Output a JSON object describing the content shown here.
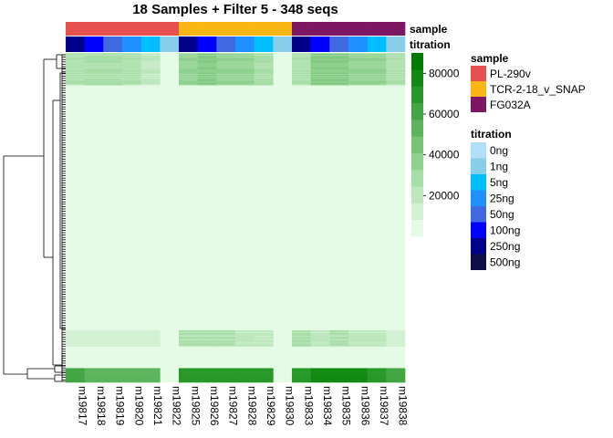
{
  "chart_data": {
    "type": "heatmap",
    "title": "18 Samples + Filter 5 - 348 seqs",
    "columns": [
      "m19817",
      "m19818",
      "m19819",
      "m19820",
      "m19821",
      "m19822",
      "m19825",
      "m19826",
      "m19827",
      "m19828",
      "m19829",
      "m19830",
      "m19833",
      "m19834",
      "m19835",
      "m19836",
      "m19837",
      "m19838"
    ],
    "column_annotations": {
      "sample": [
        "PL-290v",
        "PL-290v",
        "PL-290v",
        "PL-290v",
        "PL-290v",
        "PL-290v",
        "TCR-2-18_v_SNAP",
        "TCR-2-18_v_SNAP",
        "TCR-2-18_v_SNAP",
        "TCR-2-18_v_SNAP",
        "TCR-2-18_v_SNAP",
        "TCR-2-18_v_SNAP",
        "FG032A",
        "FG032A",
        "FG032A",
        "FG032A",
        "FG032A",
        "FG032A"
      ],
      "titration": [
        "250ng",
        "100ng",
        "50ng",
        "25ng",
        "5ng",
        "1ng",
        "250ng",
        "100ng",
        "50ng",
        "25ng",
        "5ng",
        "1ng",
        "250ng",
        "100ng",
        "50ng",
        "25ng",
        "5ng",
        "1ng"
      ]
    },
    "annotation_labels": {
      "sample": "sample",
      "titration": "titration"
    },
    "legend_sample": {
      "title": "sample",
      "entries": [
        {
          "label": "PL-290v",
          "color": "#E5504F"
        },
        {
          "label": "TCR-2-18_v_SNAP",
          "color": "#FBB515"
        },
        {
          "label": "FG032A",
          "color": "#7E1763"
        }
      ]
    },
    "legend_titration": {
      "title": "titration",
      "entries": [
        {
          "label": "0ng",
          "color": "#B2DFF8"
        },
        {
          "label": "1ng",
          "color": "#87CEEB"
        },
        {
          "label": "5ng",
          "color": "#00BFFF"
        },
        {
          "label": "25ng",
          "color": "#1E90FF"
        },
        {
          "label": "50ng",
          "color": "#4169E1"
        },
        {
          "label": "100ng",
          "color": "#0000FF"
        },
        {
          "label": "250ng",
          "color": "#00008B"
        },
        {
          "label": "500ng",
          "color": "#0E0E48"
        }
      ]
    },
    "colorbar": {
      "ticks": [
        20000,
        40000,
        60000,
        80000
      ],
      "tick_labels": [
        "20000",
        "40000",
        "60000",
        "80000"
      ],
      "range": [
        0,
        90000
      ],
      "colors": [
        "#E5FBE5",
        "#D2F0D2",
        "#BDE7BD",
        "#A7DDA7",
        "#8FD18F",
        "#77C477",
        "#5CB55C",
        "#42A642",
        "#289828",
        "#128A12",
        "#007D00"
      ]
    },
    "rows": 348,
    "row_profiles": [
      {
        "band": "top",
        "weights": [
          0.3,
          0.35,
          0.35,
          0.3,
          0.2,
          0.0,
          0.45,
          0.5,
          0.45,
          0.45,
          0.35,
          0.0,
          0.3,
          0.5,
          0.5,
          0.45,
          0.45,
          0.3
        ]
      },
      {
        "band": "middle-low",
        "weights": [
          0.15,
          0.15,
          0.15,
          0.1,
          0.1,
          0.0,
          0.3,
          0.3,
          0.3,
          0.25,
          0.2,
          0.0,
          0.35,
          0.25,
          0.3,
          0.25,
          0.25,
          0.15
        ]
      },
      {
        "band": "bottom",
        "weights": [
          0.7,
          0.65,
          0.65,
          0.65,
          0.6,
          0.0,
          0.85,
          0.85,
          0.85,
          0.85,
          0.8,
          0.0,
          0.8,
          0.9,
          0.9,
          0.9,
          0.85,
          0.75
        ]
      }
    ]
  }
}
